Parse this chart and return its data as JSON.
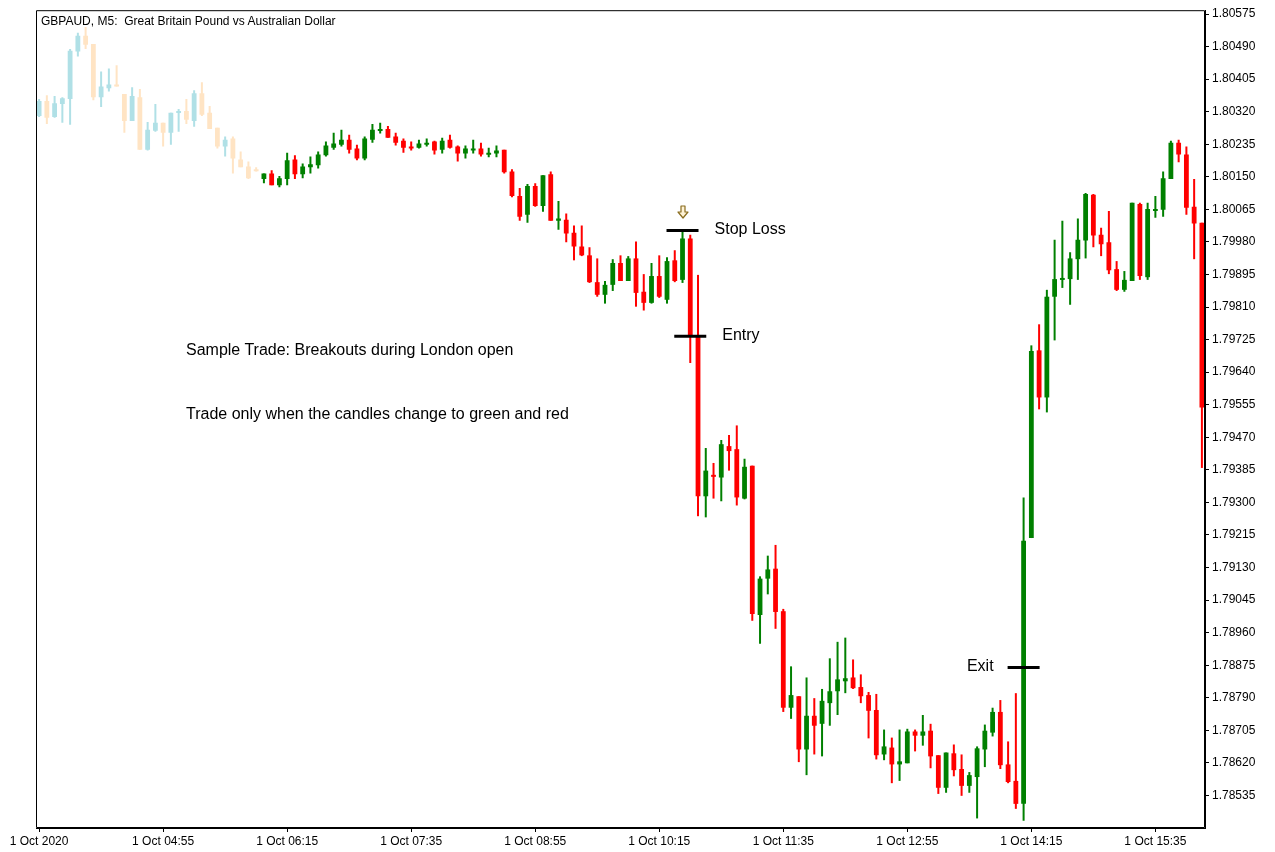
{
  "chart_data": {
    "type": "candlestick",
    "title": "GBPAUD, M5:  Great Britain Pound vs Australian Dollar",
    "x": [
      "2020-10-01T03:35",
      "2020-10-01T03:40",
      "2020-10-01T03:45",
      "2020-10-01T03:50",
      "2020-10-01T03:55",
      "2020-10-01T04:00",
      "2020-10-01T04:05",
      "2020-10-01T04:10",
      "2020-10-01T04:15",
      "2020-10-01T04:20",
      "2020-10-01T04:25",
      "2020-10-01T04:30",
      "2020-10-01T04:35",
      "2020-10-01T04:40",
      "2020-10-01T04:45",
      "2020-10-01T04:50",
      "2020-10-01T04:55",
      "2020-10-01T05:00",
      "2020-10-01T05:05",
      "2020-10-01T05:10",
      "2020-10-01T05:15",
      "2020-10-01T05:20",
      "2020-10-01T05:25",
      "2020-10-01T05:30",
      "2020-10-01T05:35",
      "2020-10-01T05:40",
      "2020-10-01T05:45",
      "2020-10-01T05:50",
      "2020-10-01T05:55",
      "2020-10-01T06:00",
      "2020-10-01T06:05",
      "2020-10-01T06:10",
      "2020-10-01T06:15",
      "2020-10-01T06:20",
      "2020-10-01T06:25",
      "2020-10-01T06:30",
      "2020-10-01T06:35",
      "2020-10-01T06:40",
      "2020-10-01T06:45",
      "2020-10-01T06:50",
      "2020-10-01T06:55",
      "2020-10-01T07:00",
      "2020-10-01T07:05",
      "2020-10-01T07:10",
      "2020-10-01T07:15",
      "2020-10-01T07:20",
      "2020-10-01T07:25",
      "2020-10-01T07:30",
      "2020-10-01T07:35",
      "2020-10-01T07:40",
      "2020-10-01T07:45",
      "2020-10-01T07:50",
      "2020-10-01T07:55",
      "2020-10-01T08:00",
      "2020-10-01T08:05",
      "2020-10-01T08:10",
      "2020-10-01T08:15",
      "2020-10-01T08:20",
      "2020-10-01T08:25",
      "2020-10-01T08:30",
      "2020-10-01T08:35",
      "2020-10-01T08:40",
      "2020-10-01T08:45",
      "2020-10-01T08:50",
      "2020-10-01T08:55",
      "2020-10-01T09:00",
      "2020-10-01T09:05",
      "2020-10-01T09:10",
      "2020-10-01T09:15",
      "2020-10-01T09:20",
      "2020-10-01T09:25",
      "2020-10-01T09:30",
      "2020-10-01T09:35",
      "2020-10-01T09:40",
      "2020-10-01T09:45",
      "2020-10-01T09:50",
      "2020-10-01T09:55",
      "2020-10-01T10:00",
      "2020-10-01T10:05",
      "2020-10-01T10:10",
      "2020-10-01T10:15",
      "2020-10-01T10:20",
      "2020-10-01T10:25",
      "2020-10-01T10:30",
      "2020-10-01T10:35",
      "2020-10-01T10:40",
      "2020-10-01T10:45",
      "2020-10-01T10:50",
      "2020-10-01T10:55",
      "2020-10-01T11:00",
      "2020-10-01T11:05",
      "2020-10-01T11:10",
      "2020-10-01T11:15",
      "2020-10-01T11:20",
      "2020-10-01T11:25",
      "2020-10-01T11:30",
      "2020-10-01T11:35",
      "2020-10-01T11:40",
      "2020-10-01T11:45",
      "2020-10-01T11:50",
      "2020-10-01T11:55",
      "2020-10-01T12:00",
      "2020-10-01T12:05",
      "2020-10-01T12:10",
      "2020-10-01T12:15",
      "2020-10-01T12:20",
      "2020-10-01T12:25",
      "2020-10-01T12:30",
      "2020-10-01T12:35",
      "2020-10-01T12:40",
      "2020-10-01T12:45",
      "2020-10-01T12:50",
      "2020-10-01T12:55",
      "2020-10-01T13:00",
      "2020-10-01T13:05",
      "2020-10-01T13:10",
      "2020-10-01T13:15",
      "2020-10-01T13:20",
      "2020-10-01T13:25",
      "2020-10-01T13:30",
      "2020-10-01T13:35",
      "2020-10-01T13:40",
      "2020-10-01T13:45",
      "2020-10-01T13:50",
      "2020-10-01T13:55",
      "2020-10-01T14:00",
      "2020-10-01T14:05",
      "2020-10-01T14:10",
      "2020-10-01T14:15",
      "2020-10-01T14:20",
      "2020-10-01T14:25",
      "2020-10-01T14:30",
      "2020-10-01T14:35",
      "2020-10-01T14:40",
      "2020-10-01T14:45",
      "2020-10-01T14:50",
      "2020-10-01T14:55",
      "2020-10-01T15:00",
      "2020-10-01T15:05",
      "2020-10-01T15:10",
      "2020-10-01T15:15",
      "2020-10-01T15:20",
      "2020-10-01T15:25",
      "2020-10-01T15:30",
      "2020-10-01T15:35",
      "2020-10-01T15:40",
      "2020-10-01T15:45",
      "2020-10-01T15:50",
      "2020-10-01T15:55",
      "2020-10-01T16:00",
      "2020-10-01T16:05"
    ],
    "ohlc": [
      [
        1.80309,
        1.80353,
        1.80306,
        1.80348
      ],
      [
        1.80348,
        1.80363,
        1.80288,
        1.80304
      ],
      [
        1.80306,
        1.80361,
        1.80304,
        1.80342
      ],
      [
        1.8034,
        1.80358,
        1.80291,
        1.80355
      ],
      [
        1.80353,
        1.80484,
        1.80286,
        1.80479
      ],
      [
        1.80477,
        1.80526,
        1.80464,
        1.80518
      ],
      [
        1.80518,
        1.80541,
        1.80484,
        1.80495
      ],
      [
        1.80497,
        1.80497,
        1.8035,
        1.80358
      ],
      [
        1.80358,
        1.80425,
        1.80332,
        1.80386
      ],
      [
        1.80381,
        1.80433,
        1.80373,
        1.80391
      ],
      [
        1.80391,
        1.80441,
        1.80386,
        1.80386
      ],
      [
        1.80366,
        1.80366,
        1.80265,
        1.80296
      ],
      [
        1.80296,
        1.80384,
        1.80296,
        1.80361
      ],
      [
        1.80358,
        1.80379,
        1.80221,
        1.80221
      ],
      [
        1.80221,
        1.80293,
        1.80219,
        1.80273
      ],
      [
        1.8027,
        1.8034,
        1.80268,
        1.80291
      ],
      [
        1.80291,
        1.80291,
        1.80229,
        1.80265
      ],
      [
        1.80265,
        1.80317,
        1.80234,
        1.80317
      ],
      [
        1.80317,
        1.80327,
        1.80268,
        1.80322
      ],
      [
        1.80322,
        1.80353,
        1.80288,
        1.80299
      ],
      [
        1.80296,
        1.80376,
        1.80281,
        1.80368
      ],
      [
        1.80368,
        1.80397,
        1.80309,
        1.80312
      ],
      [
        1.80317,
        1.80335,
        1.80275,
        1.80275
      ],
      [
        1.80278,
        1.80278,
        1.80224,
        1.80229
      ],
      [
        1.80229,
        1.80255,
        1.80203,
        1.80247
      ],
      [
        1.8025,
        1.80255,
        1.80159,
        1.80198
      ],
      [
        1.80195,
        1.80216,
        1.80175,
        1.80175
      ],
      [
        1.80177,
        1.8019,
        1.80144,
        1.80146
      ],
      [
        1.8017,
        1.80175,
        1.80164,
        1.80167
      ],
      [
        1.80144,
        1.80159,
        1.80133,
        1.80159
      ],
      [
        1.80159,
        1.80167,
        1.80128,
        1.80128
      ],
      [
        1.80128,
        1.80152,
        1.80123,
        1.80146
      ],
      [
        1.80144,
        1.80213,
        1.80128,
        1.80193
      ],
      [
        1.80195,
        1.80206,
        1.80144,
        1.80157
      ],
      [
        1.80157,
        1.80185,
        1.80146,
        1.80177
      ],
      [
        1.80175,
        1.80203,
        1.80159,
        1.80183
      ],
      [
        1.8018,
        1.80216,
        1.80172,
        1.80208
      ],
      [
        1.80206,
        1.80242,
        1.80203,
        1.80232
      ],
      [
        1.80226,
        1.80265,
        1.80221,
        1.80237
      ],
      [
        1.80234,
        1.80273,
        1.80229,
        1.80247
      ],
      [
        1.80247,
        1.8026,
        1.80211,
        1.80221
      ],
      [
        1.80224,
        1.80234,
        1.80193,
        1.80198
      ],
      [
        1.80198,
        1.80255,
        1.80193,
        1.8025
      ],
      [
        1.80247,
        1.80288,
        1.80239,
        1.80273
      ],
      [
        1.8027,
        1.80291,
        1.80263,
        1.80275
      ],
      [
        1.80275,
        1.80283,
        1.80252,
        1.80252
      ],
      [
        1.80255,
        1.80265,
        1.80232,
        1.80239
      ],
      [
        1.80244,
        1.8025,
        1.80213,
        1.80226
      ],
      [
        1.80229,
        1.80242,
        1.80219,
        1.80224
      ],
      [
        1.80226,
        1.80247,
        1.80224,
        1.80237
      ],
      [
        1.80234,
        1.8025,
        1.80229,
        1.80239
      ],
      [
        1.80242,
        1.80244,
        1.80208,
        1.80219
      ],
      [
        1.80221,
        1.80252,
        1.80211,
        1.80244
      ],
      [
        1.80247,
        1.8026,
        1.80224,
        1.80226
      ],
      [
        1.80229,
        1.80232,
        1.8019,
        1.80211
      ],
      [
        1.80211,
        1.80232,
        1.80198,
        1.80224
      ],
      [
        1.80221,
        1.80247,
        1.80211,
        1.80224
      ],
      [
        1.80224,
        1.80239,
        1.80203,
        1.80208
      ],
      [
        1.80208,
        1.80226,
        1.80201,
        1.80213
      ],
      [
        1.80211,
        1.80232,
        1.80201,
        1.80219
      ],
      [
        1.80221,
        1.80221,
        1.80159,
        1.80162
      ],
      [
        1.80164,
        1.8017,
        1.80097,
        1.801
      ],
      [
        1.801,
        1.80121,
        1.80035,
        1.80046
      ],
      [
        1.80051,
        1.80131,
        1.8003,
        1.80126
      ],
      [
        1.80126,
        1.80133,
        1.80072,
        1.80074
      ],
      [
        1.80074,
        1.80154,
        1.80059,
        1.80154
      ],
      [
        1.80157,
        1.80164,
        1.80035,
        1.80035
      ],
      [
        1.80035,
        1.80087,
        1.80012,
        1.80041
      ],
      [
        1.80038,
        1.80054,
        1.79979,
        1.80002
      ],
      [
        1.80004,
        1.80023,
        1.79932,
        1.79968
      ],
      [
        1.79968,
        1.80023,
        1.79943,
        1.79945
      ],
      [
        1.79945,
        1.79966,
        1.79873,
        1.79875
      ],
      [
        1.79875,
        1.79937,
        1.79837,
        1.79842
      ],
      [
        1.79842,
        1.79878,
        1.79819,
        1.79868
      ],
      [
        1.79868,
        1.79935,
        1.79852,
        1.79925
      ],
      [
        1.79925,
        1.79945,
        1.79878,
        1.79878
      ],
      [
        1.79878,
        1.79943,
        1.79878,
        1.79937
      ],
      [
        1.79937,
        1.79981,
        1.79811,
        1.79847
      ],
      [
        1.7985,
        1.79896,
        1.79801,
        1.79821
      ],
      [
        1.79821,
        1.79925,
        1.79819,
        1.79891
      ],
      [
        1.79891,
        1.79945,
        1.79834,
        1.79837
      ],
      [
        1.79829,
        1.7994,
        1.79819,
        1.7993
      ],
      [
        1.79932,
        1.79958,
        1.79875,
        1.79878
      ],
      [
        1.79881,
        1.8001,
        1.79873,
        1.79989
      ],
      [
        1.79989,
        1.79999,
        1.79664,
        1.79734
      ],
      [
        1.79734,
        1.79894,
        1.79264,
        1.79316
      ],
      [
        1.79316,
        1.79442,
        1.79261,
        1.79383
      ],
      [
        1.79372,
        1.79403,
        1.7931,
        1.79367
      ],
      [
        1.79365,
        1.79463,
        1.79303,
        1.79452
      ],
      [
        1.79447,
        1.79476,
        1.79383,
        1.79434
      ],
      [
        1.79439,
        1.79501,
        1.79292,
        1.79313
      ],
      [
        1.7931,
        1.79414,
        1.79308,
        1.79393
      ],
      [
        1.79396,
        1.79396,
        1.78991,
        1.79009
      ],
      [
        1.79006,
        1.79107,
        1.78931,
        1.79101
      ],
      [
        1.79101,
        1.79161,
        1.7906,
        1.79125
      ],
      [
        1.79127,
        1.79189,
        1.7897,
        1.79014
      ],
      [
        1.79016,
        1.79022,
        1.78753,
        1.78764
      ],
      [
        1.78764,
        1.78872,
        1.78735,
        1.78797
      ],
      [
        1.78794,
        1.78794,
        1.78622,
        1.78655
      ],
      [
        1.78655,
        1.78843,
        1.78588,
        1.78743
      ],
      [
        1.78743,
        1.78789,
        1.78642,
        1.78717
      ],
      [
        1.78722,
        1.78813,
        1.78637,
        1.78782
      ],
      [
        1.78776,
        1.78893,
        1.78717,
        1.78807
      ],
      [
        1.78807,
        1.78936,
        1.78745,
        1.78838
      ],
      [
        1.78833,
        1.78947,
        1.78802,
        1.78841
      ],
      [
        1.78843,
        1.7889,
        1.78813,
        1.78815
      ],
      [
        1.78818,
        1.78851,
        1.78776,
        1.78794
      ],
      [
        1.78797,
        1.78805,
        1.78684,
        1.78756
      ],
      [
        1.78758,
        1.788,
        1.78629,
        1.7864
      ],
      [
        1.78642,
        1.78707,
        1.78627,
        1.78663
      ],
      [
        1.7866,
        1.78686,
        1.78567,
        1.78616
      ],
      [
        1.78616,
        1.78707,
        1.78573,
        1.78624
      ],
      [
        1.78619,
        1.78709,
        1.78619,
        1.78702
      ],
      [
        1.78702,
        1.78707,
        1.7865,
        1.78691
      ],
      [
        1.78691,
        1.78745,
        1.78665,
        1.78702
      ],
      [
        1.78704,
        1.78722,
        1.78606,
        1.78637
      ],
      [
        1.7864,
        1.7864,
        1.78539,
        1.78555
      ],
      [
        1.78555,
        1.78647,
        1.78542,
        1.78647
      ],
      [
        1.78645,
        1.78668,
        1.78585,
        1.78601
      ],
      [
        1.78604,
        1.78642,
        1.78534,
        1.7856
      ],
      [
        1.7856,
        1.78596,
        1.78542,
        1.78588
      ],
      [
        1.78583,
        1.78663,
        1.78475,
        1.78658
      ],
      [
        1.78655,
        1.7872,
        1.78609,
        1.78704
      ],
      [
        1.78699,
        1.78764,
        1.78689,
        1.78753
      ],
      [
        1.78753,
        1.78784,
        1.78604,
        1.78614
      ],
      [
        1.78616,
        1.78676,
        1.78567,
        1.7857
      ],
      [
        1.78573,
        1.78802,
        1.785,
        1.78513
      ],
      [
        1.78513,
        1.79313,
        1.78469,
        1.792
      ],
      [
        1.79207,
        1.7971,
        1.79207,
        1.79695
      ],
      [
        1.79697,
        1.79765,
        1.79543,
        1.79574
      ],
      [
        1.79574,
        1.79855,
        1.79535,
        1.79837
      ],
      [
        1.79837,
        1.79986,
        1.79723,
        1.79883
      ],
      [
        1.79881,
        1.80035,
        1.7986,
        1.79886
      ],
      [
        1.79883,
        1.79953,
        1.79816,
        1.79937
      ],
      [
        1.79935,
        1.80041,
        1.79881,
        1.79986
      ],
      [
        1.79984,
        1.80108,
        1.79937,
        1.80105
      ],
      [
        1.80103,
        1.80105,
        1.79966,
        1.79997
      ],
      [
        1.79999,
        1.80017,
        1.79943,
        1.79974
      ],
      [
        1.79979,
        1.80061,
        1.79896,
        1.79906
      ],
      [
        1.79909,
        1.7993,
        1.79852,
        1.79855
      ],
      [
        1.79855,
        1.79904,
        1.7985,
        1.79881
      ],
      [
        1.79878,
        1.80082,
        1.79878,
        1.80082
      ],
      [
        1.80079,
        1.80082,
        1.79881,
        1.79891
      ],
      [
        1.79888,
        1.80082,
        1.79881,
        1.80066
      ],
      [
        1.80061,
        1.801,
        1.80043,
        1.80066
      ],
      [
        1.80064,
        1.80164,
        1.80046,
        1.80146
      ],
      [
        1.80144,
        1.80244,
        1.80144,
        1.80239
      ],
      [
        1.80239,
        1.80247,
        1.80188,
        1.80208
      ],
      [
        1.80208,
        1.80229,
        1.80051,
        1.80069
      ],
      [
        1.80072,
        1.80144,
        1.79935,
        1.80028
      ],
      [
        1.8003,
        1.8003,
        1.7939,
        1.79548
      ]
    ],
    "colors": [
      "#b0e0e6",
      "#ffe4c4",
      "#b0e0e6",
      "#b0e0e6",
      "#b0e0e6",
      "#b0e0e6",
      "#ffe4c4",
      "#ffe4c4",
      "#b0e0e6",
      "#b0e0e6",
      "#ffe4c4",
      "#ffe4c4",
      "#b0e0e6",
      "#ffe4c4",
      "#b0e0e6",
      "#b0e0e6",
      "#ffe4c4",
      "#b0e0e6",
      "#b0e0e6",
      "#ffe4c4",
      "#b0e0e6",
      "#ffe4c4",
      "#ffe4c4",
      "#ffe4c4",
      "#b0e0e6",
      "#ffe4c4",
      "#ffe4c4",
      "#ffe4c4",
      "#ffe4c4",
      "#008000",
      "#ff0000",
      "#008000",
      "#008000",
      "#ff0000",
      "#008000",
      "#008000",
      "#008000",
      "#008000",
      "#008000",
      "#008000",
      "#ff0000",
      "#ff0000",
      "#008000",
      "#008000",
      "#008000",
      "#ff0000",
      "#ff0000",
      "#ff0000",
      "#ff0000",
      "#008000",
      "#008000",
      "#ff0000",
      "#008000",
      "#ff0000",
      "#ff0000",
      "#008000",
      "#008000",
      "#ff0000",
      "#008000",
      "#008000",
      "#ff0000",
      "#ff0000",
      "#ff0000",
      "#008000",
      "#ff0000",
      "#008000",
      "#ff0000",
      "#008000",
      "#ff0000",
      "#ff0000",
      "#ff0000",
      "#ff0000",
      "#ff0000",
      "#008000",
      "#008000",
      "#ff0000",
      "#008000",
      "#ff0000",
      "#ff0000",
      "#008000",
      "#ff0000",
      "#008000",
      "#ff0000",
      "#008000",
      "#ff0000",
      "#ff0000",
      "#008000",
      "#ff0000",
      "#008000",
      "#ff0000",
      "#ff0000",
      "#008000",
      "#ff0000",
      "#008000",
      "#008000",
      "#ff0000",
      "#ff0000",
      "#008000",
      "#ff0000",
      "#008000",
      "#ff0000",
      "#008000",
      "#008000",
      "#008000",
      "#008000",
      "#ff0000",
      "#ff0000",
      "#ff0000",
      "#ff0000",
      "#008000",
      "#ff0000",
      "#008000",
      "#008000",
      "#ff0000",
      "#008000",
      "#ff0000",
      "#ff0000",
      "#008000",
      "#ff0000",
      "#ff0000",
      "#008000",
      "#008000",
      "#008000",
      "#008000",
      "#ff0000",
      "#ff0000",
      "#ff0000",
      "#008000",
      "#008000",
      "#ff0000",
      "#008000",
      "#008000",
      "#008000",
      "#008000",
      "#008000",
      "#008000",
      "#ff0000",
      "#ff0000",
      "#ff0000",
      "#ff0000",
      "#008000",
      "#008000",
      "#ff0000",
      "#008000",
      "#008000",
      "#008000",
      "#008000",
      "#ff0000",
      "#ff0000",
      "#ff0000",
      "#ff0000"
    ],
    "xlim": [
      "2020-10-01T03:33",
      "2020-10-01T16:07"
    ],
    "xticks": [
      {
        "value": "2020-10-01T03:35",
        "label": "1 Oct 2020"
      },
      {
        "value": "2020-10-01T04:55",
        "label": "1 Oct 04:55"
      },
      {
        "value": "2020-10-01T06:15",
        "label": "1 Oct 06:15"
      },
      {
        "value": "2020-10-01T07:35",
        "label": "1 Oct 07:35"
      },
      {
        "value": "2020-10-01T08:55",
        "label": "1 Oct 08:55"
      },
      {
        "value": "2020-10-01T10:15",
        "label": "1 Oct 10:15"
      },
      {
        "value": "2020-10-01T11:35",
        "label": "1 Oct 11:35"
      },
      {
        "value": "2020-10-01T12:55",
        "label": "1 Oct 12:55"
      },
      {
        "value": "2020-10-01T14:15",
        "label": "1 Oct 14:15"
      },
      {
        "value": "2020-10-01T15:35",
        "label": "1 Oct 15:35"
      }
    ],
    "ylim": [
      1.7845,
      1.80585
    ],
    "yticks": [
      1.80575,
      {
        "value": 1.8049,
        "label": "1.80490"
      },
      1.80405,
      {
        "value": 1.8032,
        "label": "1.80320"
      },
      1.80235,
      {
        "value": 1.8015,
        "label": "1.80150"
      },
      1.80065,
      {
        "value": 1.7998,
        "label": "1.79980"
      },
      1.79895,
      {
        "value": 1.7981,
        "label": "1.79810"
      },
      1.79725,
      {
        "value": 1.7964,
        "label": "1.79640"
      },
      1.79555,
      {
        "value": 1.7947,
        "label": "1.79470"
      },
      1.79385,
      {
        "value": 1.793,
        "label": "1.79300"
      },
      1.79215,
      {
        "value": 1.7913,
        "label": "1.79130"
      },
      1.79045,
      {
        "value": 1.7896,
        "label": "1.78960"
      },
      1.78875,
      {
        "value": 1.7879,
        "label": "1.78790"
      },
      1.78705,
      {
        "value": 1.7862,
        "label": "1.78620"
      },
      1.78535
    ],
    "annotations": [
      {
        "text": "Stop Loss",
        "x": "2020-10-01T10:30",
        "y": 1.8001
      },
      {
        "text": "Entry",
        "x": "2020-10-01T10:35",
        "y": 1.79734
      },
      {
        "text": "Exit",
        "x": "2020-10-01T14:10",
        "y": 1.78869
      },
      "Sample Trade: Breakouts during London open",
      "Trade only when the candles change to green and red"
    ]
  }
}
